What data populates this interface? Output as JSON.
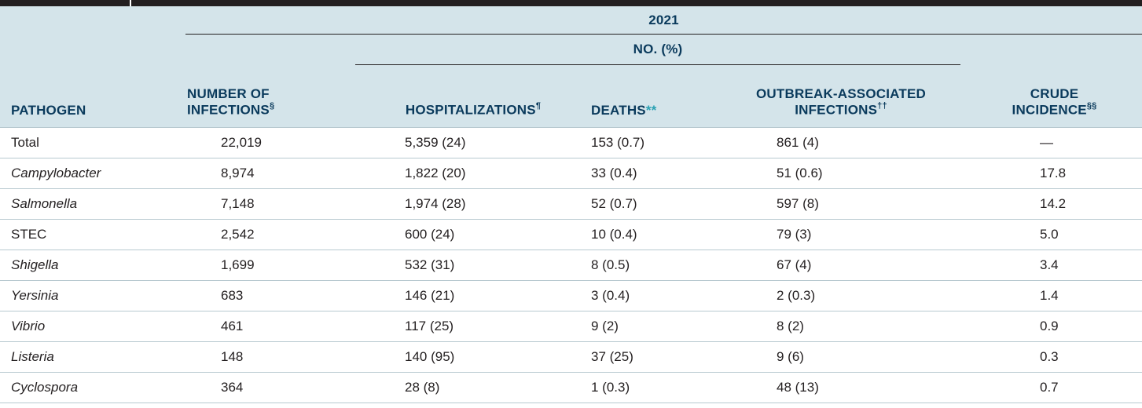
{
  "table": {
    "year": "2021",
    "group_label": "NO. (%)",
    "headers": {
      "pathogen": "PATHOGEN",
      "infections_line1": "NUMBER OF",
      "infections_line2": "INFECTIONS",
      "infections_mark": "§",
      "hospitalizations": "HOSPITALIZATIONS",
      "hospitalizations_mark": "¶",
      "deaths": "DEATHS",
      "deaths_mark": "**",
      "outbreak_line1": "OUTBREAK-ASSOCIATED",
      "outbreak_line2": "INFECTIONS",
      "outbreak_mark": "††",
      "crude_line1": "CRUDE",
      "crude_line2": "INCIDENCE",
      "crude_mark": "§§"
    },
    "rows": [
      {
        "pathogen": "Total",
        "italic": false,
        "infections": "22,019",
        "hospitalizations": "5,359 (24)",
        "deaths": "153 (0.7)",
        "outbreak": "861 (4)",
        "incidence": "—"
      },
      {
        "pathogen": "Campylobacter",
        "italic": true,
        "infections": "8,974",
        "hospitalizations": "1,822 (20)",
        "deaths": "33 (0.4)",
        "outbreak": "51 (0.6)",
        "incidence": "17.8"
      },
      {
        "pathogen": "Salmonella",
        "italic": true,
        "infections": "7,148",
        "hospitalizations": "1,974 (28)",
        "deaths": "52 (0.7)",
        "outbreak": "597 (8)",
        "incidence": "14.2"
      },
      {
        "pathogen": "STEC",
        "italic": false,
        "infections": "2,542",
        "hospitalizations": "600 (24)",
        "deaths": "10 (0.4)",
        "outbreak": "79 (3)",
        "incidence": "5.0"
      },
      {
        "pathogen": "Shigella",
        "italic": true,
        "infections": "1,699",
        "hospitalizations": "532 (31)",
        "deaths": "8 (0.5)",
        "outbreak": "67 (4)",
        "incidence": "3.4"
      },
      {
        "pathogen": "Yersinia",
        "italic": true,
        "infections": "683",
        "hospitalizations": "146 (21)",
        "deaths": "3 (0.4)",
        "outbreak": "2 (0.3)",
        "incidence": "1.4"
      },
      {
        "pathogen": "Vibrio",
        "italic": true,
        "infections": "461",
        "hospitalizations": "117 (25)",
        "deaths": "9 (2)",
        "outbreak": "8 (2)",
        "incidence": "0.9"
      },
      {
        "pathogen": "Listeria",
        "italic": true,
        "infections": "148",
        "hospitalizations": "140 (95)",
        "deaths": "37 (25)",
        "outbreak": "9 (6)",
        "incidence": "0.3"
      },
      {
        "pathogen": "Cyclospora",
        "italic": true,
        "infections": "364",
        "hospitalizations": "28 (8)",
        "deaths": "1 (0.3)",
        "outbreak": "48 (13)",
        "incidence": "0.7"
      }
    ]
  },
  "colors": {
    "header_bg": "#d4e4ea",
    "header_text": "#0a3a5c",
    "accent_teal": "#2aa1b3",
    "rule": "#231f20"
  }
}
